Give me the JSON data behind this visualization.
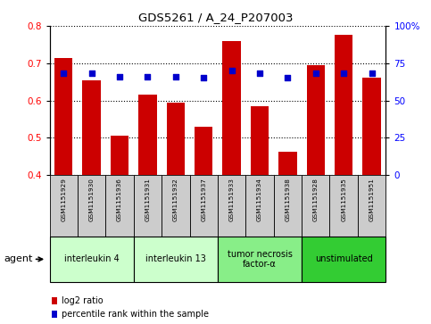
{
  "title": "GDS5261 / A_24_P207003",
  "samples": [
    "GSM1151929",
    "GSM1151930",
    "GSM1151936",
    "GSM1151931",
    "GSM1151932",
    "GSM1151937",
    "GSM1151933",
    "GSM1151934",
    "GSM1151938",
    "GSM1151928",
    "GSM1151935",
    "GSM1151951"
  ],
  "log2_ratio": [
    0.715,
    0.655,
    0.505,
    0.615,
    0.595,
    0.53,
    0.76,
    0.585,
    0.462,
    0.695,
    0.775,
    0.66
  ],
  "percentile_rank": [
    68,
    68,
    66,
    66,
    66,
    65,
    70,
    68,
    65,
    68,
    68,
    68
  ],
  "ylim_left": [
    0.4,
    0.8
  ],
  "ylim_right": [
    0,
    100
  ],
  "yticks_left": [
    0.4,
    0.5,
    0.6,
    0.7,
    0.8
  ],
  "yticks_right": [
    0,
    25,
    50,
    75,
    100
  ],
  "ytick_labels_right": [
    "0",
    "25",
    "50",
    "75",
    "100%"
  ],
  "bar_color": "#cc0000",
  "dot_color": "#0000cc",
  "grid_color": "#000000",
  "agent_groups": [
    {
      "label": "interleukin 4",
      "indices": [
        0,
        1,
        2
      ],
      "color": "#ccffcc"
    },
    {
      "label": "interleukin 13",
      "indices": [
        3,
        4,
        5
      ],
      "color": "#ccffcc"
    },
    {
      "label": "tumor necrosis\nfactor-α",
      "indices": [
        6,
        7,
        8
      ],
      "color": "#88ee88"
    },
    {
      "label": "unstimulated",
      "indices": [
        9,
        10,
        11
      ],
      "color": "#33cc33"
    }
  ],
  "legend_bar_label": "log2 ratio",
  "legend_dot_label": "percentile rank within the sample",
  "xlabel_agent": "agent",
  "sample_box_color": "#cccccc",
  "percentile_scale": 100,
  "fig_width": 4.83,
  "fig_height": 3.63,
  "dpi": 100
}
